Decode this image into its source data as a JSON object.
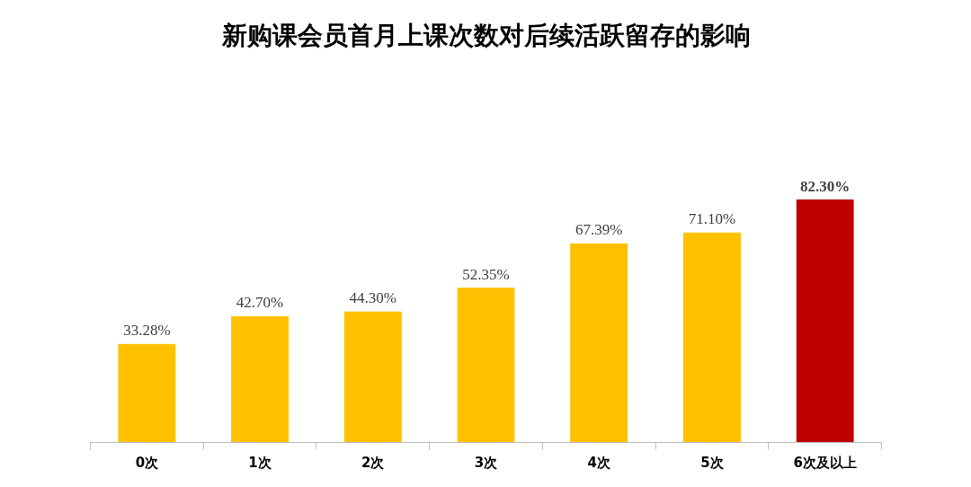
{
  "chart_data": {
    "type": "bar",
    "title": "新购课会员首月上课次数对后续活跃留存的影响",
    "categories": [
      "0次",
      "1次",
      "2次",
      "3次",
      "4次",
      "5次",
      "6次及以上"
    ],
    "values": [
      33.28,
      42.7,
      44.3,
      52.35,
      67.39,
      71.1,
      82.3
    ],
    "colors": [
      "#ffc000",
      "#ffc000",
      "#ffc000",
      "#ffc000",
      "#ffc000",
      "#ffc000",
      "#c00000"
    ],
    "value_labels": [
      "33.28%",
      "42.70%",
      "44.30%",
      "52.35%",
      "67.39%",
      "71.10%",
      "82.30%"
    ],
    "grid": false
  }
}
